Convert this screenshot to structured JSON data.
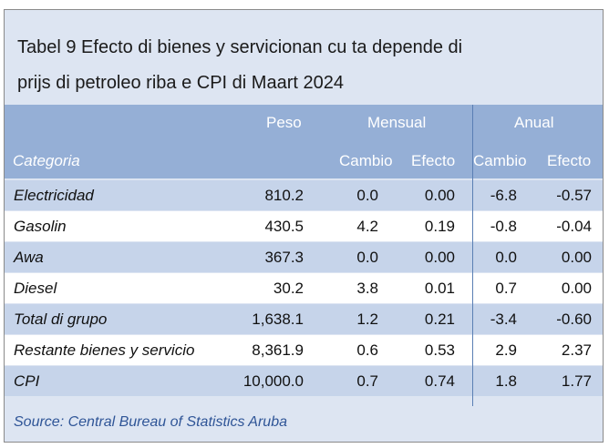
{
  "title_line1": "Tabel 9 Efecto di bienes y servicionan cu ta depende di",
  "title_line2": "prijs di petroleo riba e CPI di Maart 2024",
  "headers": {
    "peso": "Peso",
    "mensual": "Mensual",
    "anual": "Anual",
    "categoria": "Categoria",
    "cambio_m": "Cambio",
    "efecto_m": "Efecto",
    "cambio_a": "Cambio",
    "efecto_a": "Efecto"
  },
  "rows": [
    {
      "categoria": "Electricidad",
      "peso": "810.2",
      "cambio_m": "0.0",
      "efecto_m": "0.00",
      "cambio_a": "-6.8",
      "efecto_a": "-0.57"
    },
    {
      "categoria": "Gasolin",
      "peso": "430.5",
      "cambio_m": "4.2",
      "efecto_m": "0.19",
      "cambio_a": "-0.8",
      "efecto_a": "-0.04"
    },
    {
      "categoria": "Awa",
      "peso": "367.3",
      "cambio_m": "0.0",
      "efecto_m": "0.00",
      "cambio_a": "0.0",
      "efecto_a": "0.00"
    },
    {
      "categoria": "Diesel",
      "peso": "30.2",
      "cambio_m": "3.8",
      "efecto_m": "0.01",
      "cambio_a": "0.7",
      "efecto_a": "0.00"
    },
    {
      "categoria": "Total di grupo",
      "peso": "1,638.1",
      "cambio_m": "1.2",
      "efecto_m": "0.21",
      "cambio_a": "-3.4",
      "efecto_a": "-0.60"
    },
    {
      "categoria": "Restante bienes y servicio",
      "peso": "8,361.9",
      "cambio_m": "0.6",
      "efecto_m": "0.53",
      "cambio_a": "2.9",
      "efecto_a": "2.37"
    },
    {
      "categoria": "CPI",
      "peso": "10,000.0",
      "cambio_m": "0.7",
      "efecto_m": "0.74",
      "cambio_a": "1.8",
      "efecto_a": "1.77"
    }
  ],
  "source": "Source: Central Bureau of Statistics Aruba",
  "colors": {
    "header_band": "#95afd6",
    "row_odd": "#c6d4ea",
    "row_even": "#ffffff",
    "frame_bg": "#dde5f2",
    "source_text": "#2f5597"
  }
}
